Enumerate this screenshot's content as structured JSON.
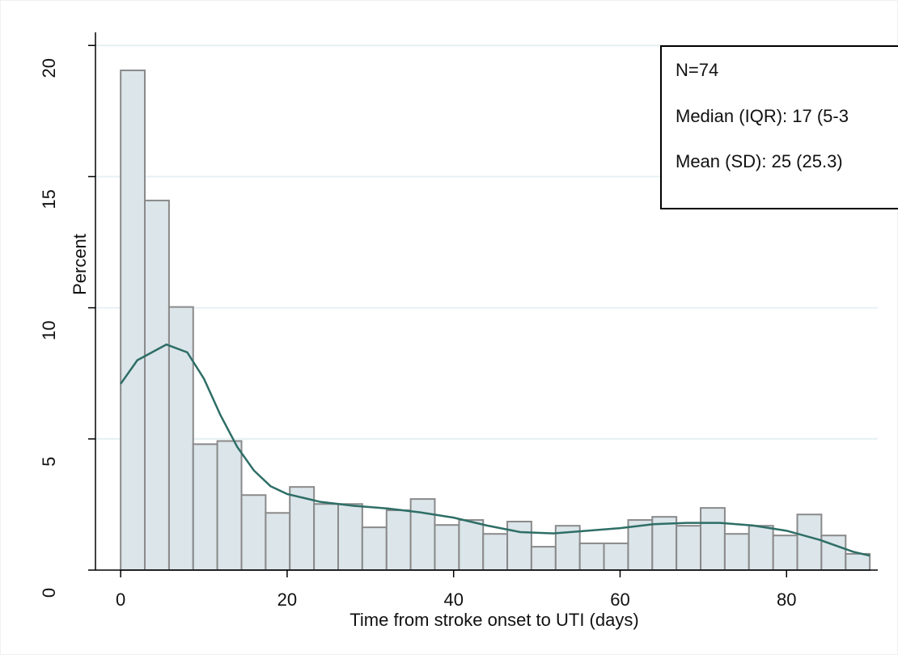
{
  "chart_data": {
    "type": "histogram",
    "x_label": "Time from stroke onset to UTI (days)",
    "y_label": "Percent",
    "bins": [
      0,
      2.9,
      5.81,
      8.71,
      11.61,
      14.52,
      17.42,
      20.32,
      23.23,
      26.13,
      29.03,
      31.94,
      34.84,
      37.74,
      40.65,
      43.55,
      46.45,
      49.35,
      52.26,
      55.16,
      58.06,
      60.97,
      63.87,
      66.77,
      69.68,
      72.58,
      75.48,
      78.39,
      81.29,
      84.19,
      87.1,
      90
    ],
    "values": [
      19.05,
      14.09,
      10.03,
      4.8,
      4.92,
      2.86,
      2.18,
      3.17,
      2.52,
      2.52,
      1.63,
      2.28,
      2.71,
      1.72,
      1.91,
      1.38,
      1.85,
      0.89,
      1.69,
      1.02,
      1.02,
      1.91,
      2.03,
      1.69,
      2.37,
      1.38,
      1.69,
      1.32,
      2.12,
      1.32,
      0.62
    ],
    "color": "#dbe5ea",
    "edge_color": "#8a8a8a",
    "density": {
      "x": [
        0,
        2,
        5.5,
        8,
        10,
        12,
        14,
        16,
        18,
        20,
        24,
        28,
        32,
        36,
        40,
        44,
        48,
        52,
        56,
        60,
        64,
        68,
        72,
        76,
        80,
        84,
        88,
        90
      ],
      "values": [
        7.1,
        8.0,
        8.6,
        8.3,
        7.3,
        5.9,
        4.7,
        3.8,
        3.2,
        2.9,
        2.6,
        2.45,
        2.35,
        2.2,
        2.0,
        1.7,
        1.45,
        1.4,
        1.5,
        1.6,
        1.75,
        1.8,
        1.8,
        1.7,
        1.5,
        1.15,
        0.7,
        0.55
      ],
      "color": "#2e6e66"
    },
    "xlim": [
      -4,
      93
    ],
    "ylim": [
      0,
      20.5
    ],
    "xticks": [
      0,
      20,
      40,
      60,
      80
    ],
    "yticks": [
      0,
      5,
      10,
      15,
      20
    ],
    "grid": true,
    "annotations": [
      "N=74",
      "Median (IQR): 17 (5-3",
      "Mean (SD): 25 (25.3)"
    ]
  }
}
